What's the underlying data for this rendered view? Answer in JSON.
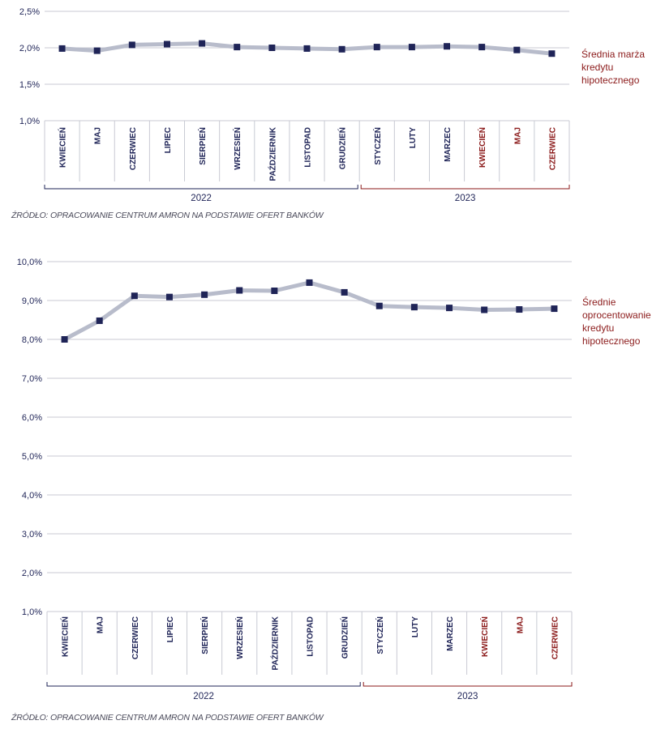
{
  "colors": {
    "line": "#b8bccb",
    "marker": "#1f2457",
    "grid": "#c8cad3",
    "axis_text": "#1f2457",
    "year_2022": "#1f2457",
    "year_2023": "#8b1a1a",
    "legend": "#8b1a1a"
  },
  "chart_data": [
    {
      "type": "line",
      "categories": [
        "KWIECIEŃ",
        "MAJ",
        "CZERWIEC",
        "LIPIEC",
        "SIERPIEŃ",
        "WRZESIEŃ",
        "PAŹDZIERNIK",
        "LISTOPAD",
        "GRUDZIEŃ",
        "STYCZEŃ",
        "LUTY",
        "MARZEC",
        "KWIECIEŃ",
        "MAJ",
        "CZERWIEC"
      ],
      "category_years": [
        "2022",
        "2022",
        "2022",
        "2022",
        "2022",
        "2022",
        "2022",
        "2022",
        "2022",
        "2023",
        "2023",
        "2023",
        "2023",
        "2023",
        "2023"
      ],
      "year_groups": [
        {
          "label": "2022",
          "start": 0,
          "end": 8
        },
        {
          "label": "2023",
          "start": 9,
          "end": 14
        }
      ],
      "series": [
        {
          "name": "Średnia marża kredytu hipotecznego",
          "values": [
            1.99,
            1.96,
            2.04,
            2.05,
            2.06,
            2.01,
            2.0,
            1.99,
            1.98,
            2.01,
            2.01,
            2.02,
            2.01,
            1.97,
            1.92
          ]
        }
      ],
      "y_ticks": [
        "2,5%",
        "2,0%",
        "1,5%",
        "1,0%"
      ],
      "y_tick_values": [
        2.5,
        2.0,
        1.5,
        1.0
      ],
      "ylim": [
        1.0,
        2.5
      ],
      "grid": true,
      "legend_position": "right",
      "source": "ŹRÓDŁO: OPRACOWANIE CENTRUM AMRON NA PODSTAWIE OFERT BANKÓW"
    },
    {
      "type": "line",
      "categories": [
        "KWIECIEŃ",
        "MAJ",
        "CZERWIEC",
        "LIPIEC",
        "SIERPIEŃ",
        "WRZESIEŃ",
        "PAŹDZIERNIK",
        "LISTOPAD",
        "GRUDZIEŃ",
        "STYCZEŃ",
        "LUTY",
        "MARZEC",
        "KWIECIEŃ",
        "MAJ",
        "CZERWIEC"
      ],
      "category_years": [
        "2022",
        "2022",
        "2022",
        "2022",
        "2022",
        "2022",
        "2022",
        "2022",
        "2022",
        "2023",
        "2023",
        "2023",
        "2023",
        "2023",
        "2023"
      ],
      "year_groups": [
        {
          "label": "2022",
          "start": 0,
          "end": 8
        },
        {
          "label": "2023",
          "start": 9,
          "end": 14
        }
      ],
      "series": [
        {
          "name": "Średnie oprocentowanie kredytu hipotecznego",
          "values": [
            8.0,
            8.48,
            9.12,
            9.09,
            9.15,
            9.26,
            9.25,
            9.46,
            9.21,
            8.86,
            8.83,
            8.81,
            8.76,
            8.77,
            8.79
          ]
        }
      ],
      "y_ticks": [
        "10,0%",
        "9,0%",
        "8,0%",
        "7,0%",
        "6,0%",
        "5,0%",
        "4,0%",
        "3,0%",
        "2,0%",
        "1,0%"
      ],
      "y_tick_values": [
        10,
        9,
        8,
        7,
        6,
        5,
        4,
        3,
        2,
        1
      ],
      "ylim": [
        1.0,
        10.0
      ],
      "grid": true,
      "legend_position": "right",
      "source": "ŹRÓDŁO: OPRACOWANIE CENTRUM AMRON NA PODSTAWIE OFERT BANKÓW"
    }
  ]
}
